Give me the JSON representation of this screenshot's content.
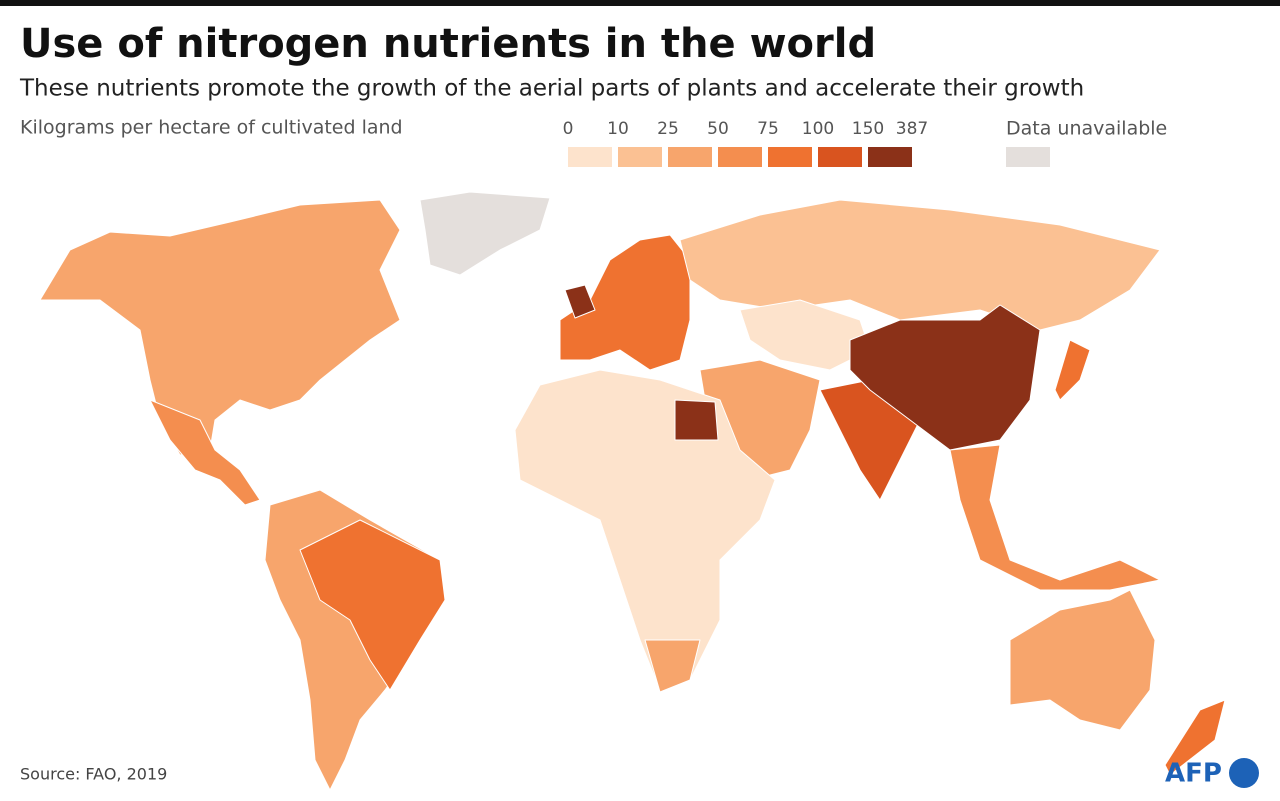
{
  "header": {
    "title": "Use of nitrogen nutrients in the world",
    "subtitle": "These nutrients promote the growth of the aerial parts of plants and accelerate their growth",
    "unit": "Kilograms per hectare of cultivated land"
  },
  "legend": {
    "ticks": [
      0,
      10,
      25,
      50,
      75,
      100,
      150,
      387
    ],
    "colors": [
      "#fde3cc",
      "#fbc193",
      "#f7a56c",
      "#f48e4f",
      "#ef7230",
      "#d9541f",
      "#8b3118"
    ],
    "unavailable_label": "Data unavailable",
    "unavailable_color": "#e4dfdc"
  },
  "footer": {
    "source": "Source: FAO, 2019",
    "logo": "AFP"
  }
}
